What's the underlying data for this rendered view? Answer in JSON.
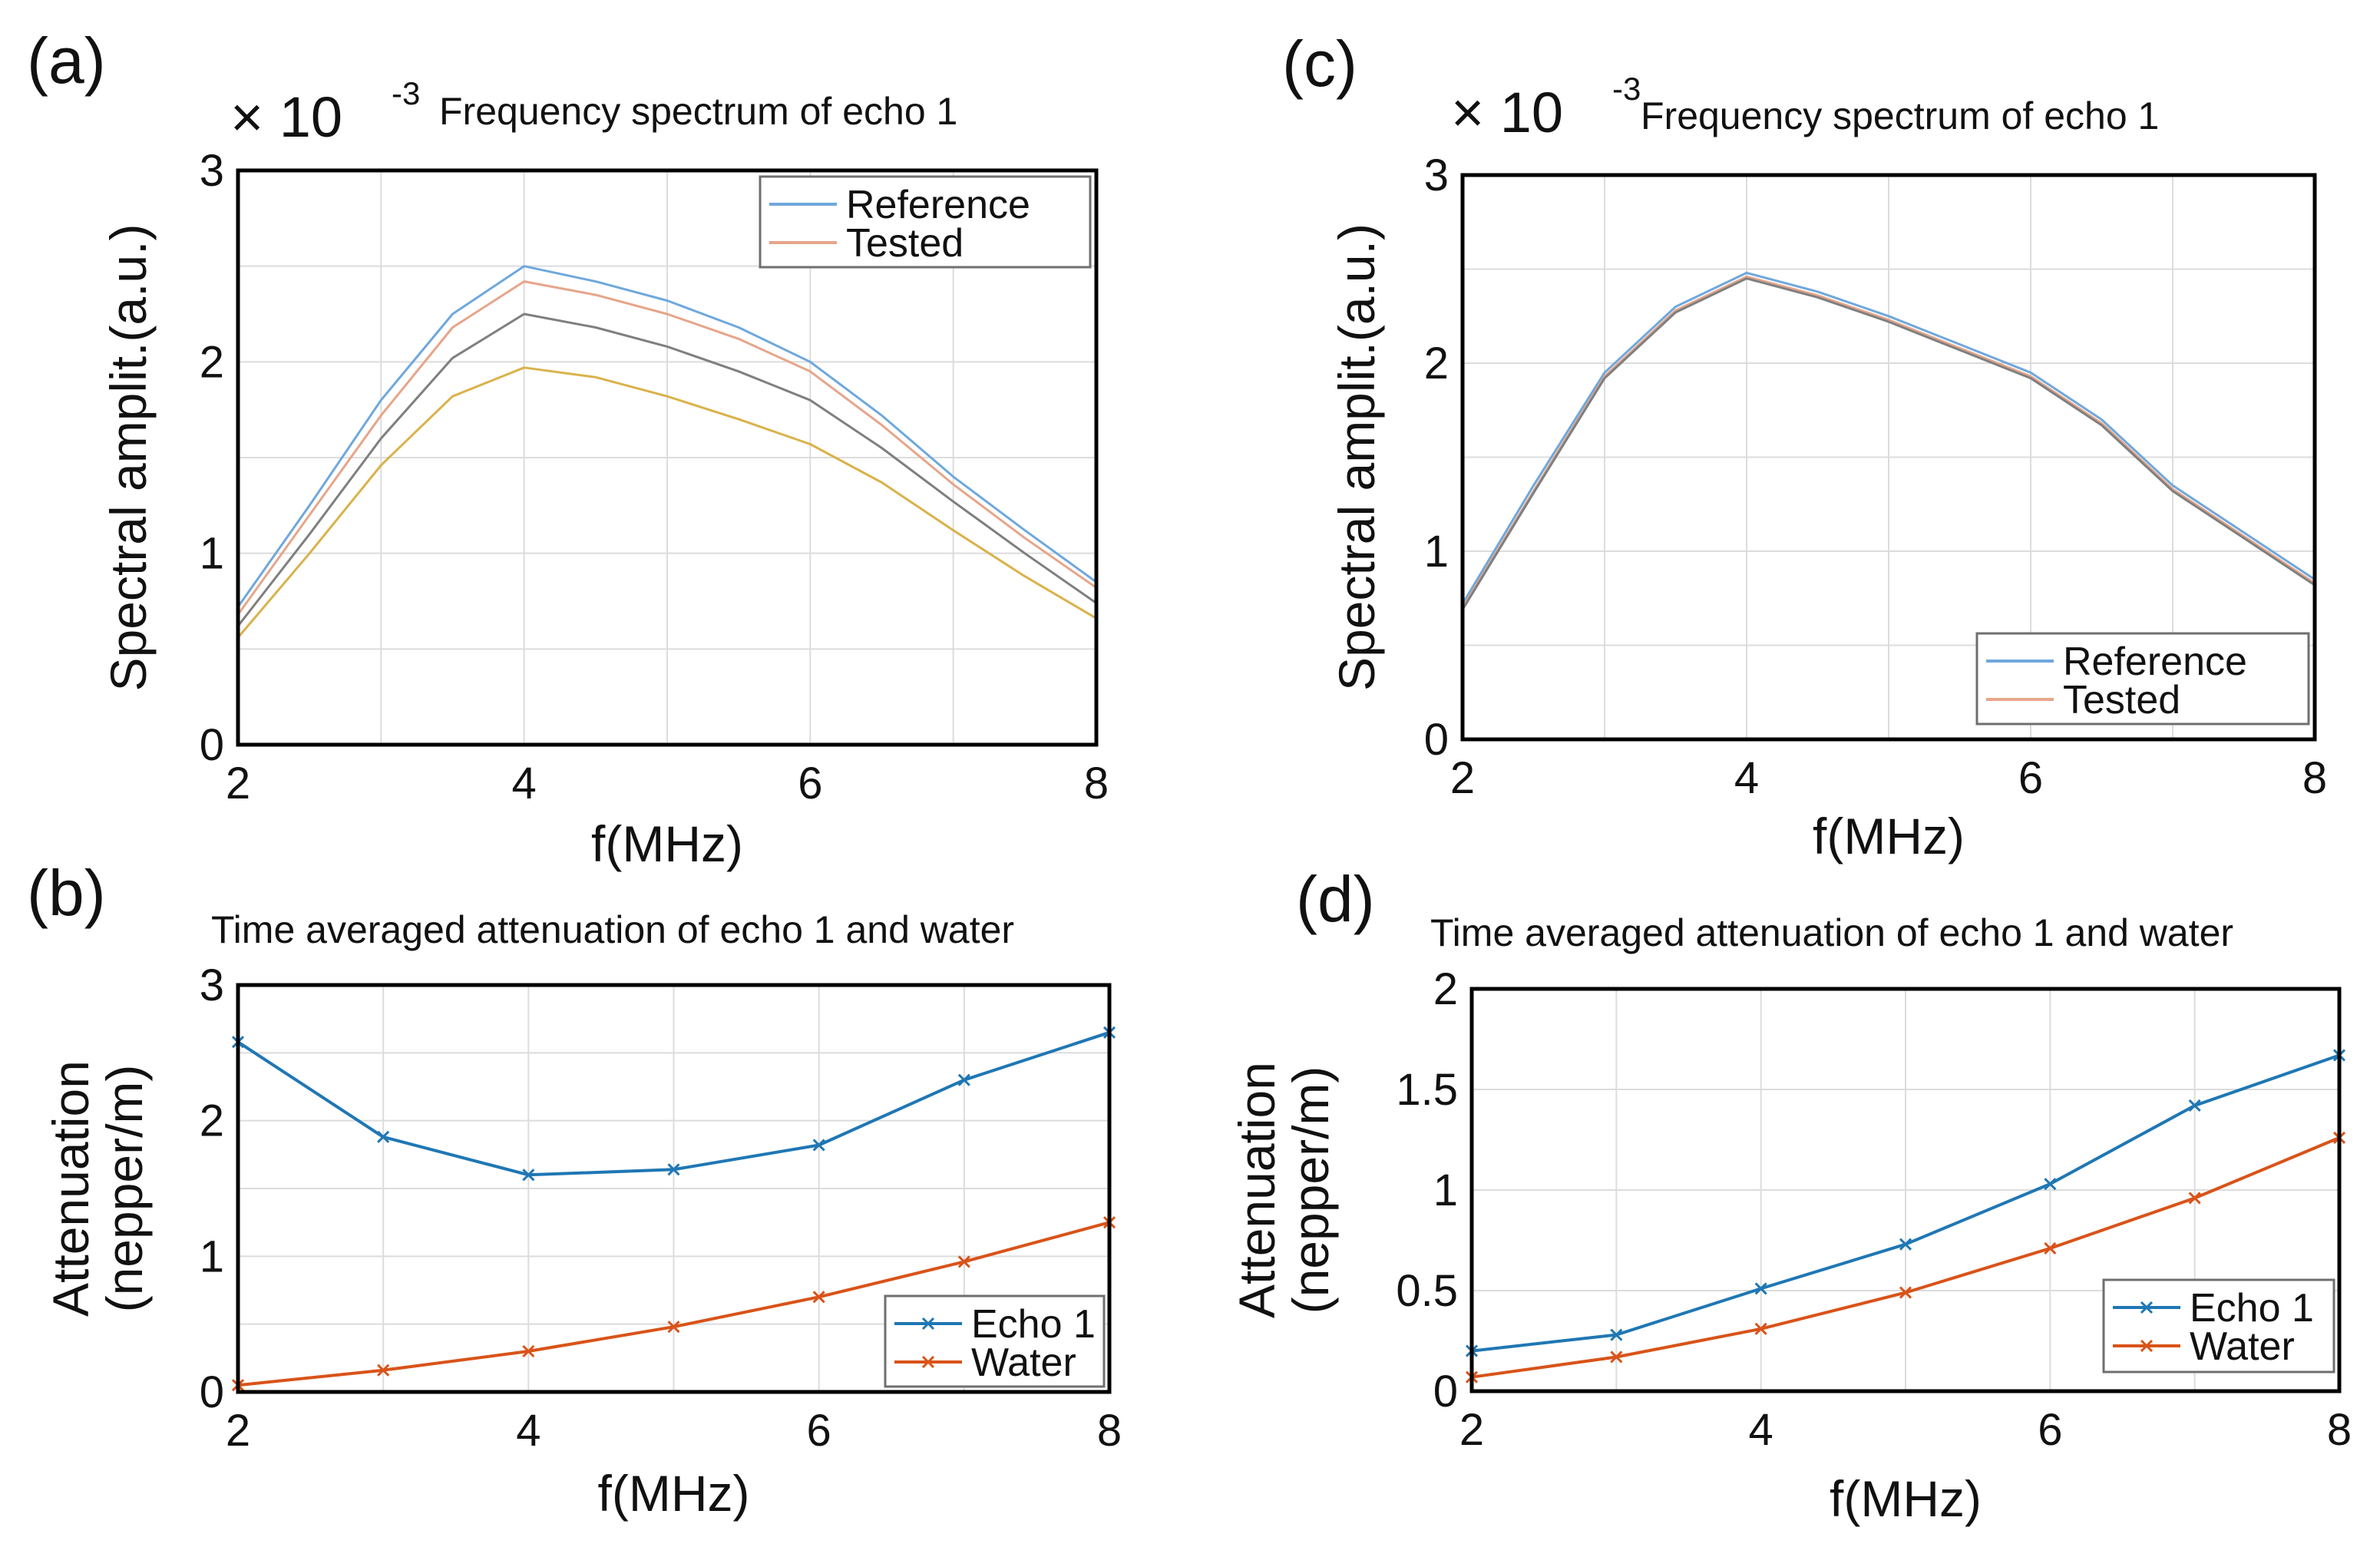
{
  "figure": {
    "panels": [
      "(a)",
      "(b)",
      "(c)",
      "(d)"
    ]
  },
  "chart_data": [
    {
      "id": "a",
      "type": "line",
      "panel_label": "(a)",
      "title": "Frequency spectrum of echo 1",
      "multiplier": "× 10",
      "multiplier_exp": "-3",
      "xlabel": "f(MHz)",
      "ylabel": "Spectral amplit.(a.u.)",
      "xlim": [
        2,
        8
      ],
      "ylim": [
        0,
        3
      ],
      "xticks": [
        "2",
        "4",
        "6",
        "8"
      ],
      "yticks": [
        "0",
        "1",
        "2",
        "3"
      ],
      "legend_position": "top-right",
      "legend": [
        "Reference",
        "Tested"
      ],
      "x": [
        2,
        2.5,
        3,
        3.5,
        4,
        4.5,
        5,
        5.5,
        6,
        6.5,
        7,
        7.5,
        8
      ],
      "series": [
        {
          "name": "Reference",
          "color": "#6fa8dc",
          "values": [
            0.72,
            1.25,
            1.8,
            2.25,
            2.5,
            2.42,
            2.32,
            2.18,
            2.0,
            1.72,
            1.4,
            1.12,
            0.85
          ]
        },
        {
          "name": "Tested",
          "color": "#e6a58a",
          "values": [
            0.68,
            1.2,
            1.72,
            2.18,
            2.42,
            2.35,
            2.25,
            2.12,
            1.95,
            1.67,
            1.36,
            1.08,
            0.82
          ]
        },
        {
          "name": "Tested",
          "color": "#7f7f7f",
          "values": [
            0.62,
            1.1,
            1.6,
            2.02,
            2.25,
            2.18,
            2.08,
            1.95,
            1.8,
            1.55,
            1.27,
            1.0,
            0.74
          ]
        },
        {
          "name": "Tested",
          "color": "#d9b24a",
          "values": [
            0.56,
            1.0,
            1.46,
            1.82,
            1.97,
            1.92,
            1.82,
            1.7,
            1.57,
            1.37,
            1.12,
            0.88,
            0.66
          ]
        }
      ]
    },
    {
      "id": "b",
      "type": "line",
      "panel_label": "(b)",
      "title": "Time averaged attenuation of echo 1 and water",
      "xlabel": "f(MHz)",
      "ylabel": "Attenuation",
      "ylabel2": "(nepper/m)",
      "xlim": [
        2,
        8
      ],
      "ylim": [
        0,
        3
      ],
      "xticks": [
        "2",
        "4",
        "6",
        "8"
      ],
      "yticks": [
        "0",
        "1",
        "2",
        "3"
      ],
      "legend_position": "bottom-right",
      "legend": [
        "Echo 1",
        "Water"
      ],
      "x": [
        2,
        3,
        4,
        5,
        6,
        7,
        8
      ],
      "series": [
        {
          "name": "Echo 1",
          "color": "#1f77b4",
          "values": [
            2.58,
            1.88,
            1.6,
            1.64,
            1.82,
            2.3,
            2.65
          ]
        },
        {
          "name": "Water",
          "color": "#d95319",
          "values": [
            0.05,
            0.16,
            0.3,
            0.48,
            0.7,
            0.96,
            1.25
          ]
        }
      ]
    },
    {
      "id": "c",
      "type": "line",
      "panel_label": "(c)",
      "title": "Frequency spectrum of echo 1",
      "multiplier": "× 10",
      "multiplier_exp": "-3",
      "xlabel": "f(MHz)",
      "ylabel": "Spectral amplit.(a.u.)",
      "xlim": [
        2,
        8
      ],
      "ylim": [
        0,
        3
      ],
      "xticks": [
        "2",
        "4",
        "6",
        "8"
      ],
      "yticks": [
        "0",
        "1",
        "2",
        "3"
      ],
      "legend_position": "bottom-right",
      "legend": [
        "Reference",
        "Tested"
      ],
      "x": [
        2,
        2.5,
        3,
        3.5,
        4,
        4.5,
        5,
        5.5,
        6,
        6.5,
        7,
        7.5,
        8
      ],
      "series": [
        {
          "name": "Reference",
          "color": "#6fa8dc",
          "values": [
            0.72,
            1.35,
            1.95,
            2.3,
            2.48,
            2.38,
            2.25,
            2.1,
            1.95,
            1.7,
            1.35,
            1.1,
            0.85
          ]
        },
        {
          "name": "Tested",
          "color": "#e6a58a",
          "values": [
            0.7,
            1.32,
            1.93,
            2.28,
            2.46,
            2.36,
            2.23,
            2.08,
            1.93,
            1.68,
            1.33,
            1.08,
            0.83
          ]
        },
        {
          "name": "Tested",
          "color": "#7f7f7f",
          "values": [
            0.69,
            1.31,
            1.92,
            2.27,
            2.45,
            2.35,
            2.22,
            2.07,
            1.92,
            1.67,
            1.32,
            1.07,
            0.82
          ]
        }
      ]
    },
    {
      "id": "d",
      "type": "line",
      "panel_label": "(d)",
      "title": "Time averaged attenuation of echo 1 and water",
      "xlabel": "f(MHz)",
      "ylabel": "Attenuation",
      "ylabel2": "(nepper/m)",
      "xlim": [
        2,
        8
      ],
      "ylim": [
        0,
        2
      ],
      "xticks": [
        "2",
        "4",
        "6",
        "8"
      ],
      "yticks": [
        "0",
        "0.5",
        "1",
        "1.5",
        "2"
      ],
      "legend_position": "bottom-right",
      "legend": [
        "Echo 1",
        "Water"
      ],
      "x": [
        2,
        3,
        4,
        5,
        6,
        7,
        8
      ],
      "series": [
        {
          "name": "Echo 1",
          "color": "#1f77b4",
          "values": [
            0.2,
            0.28,
            0.51,
            0.73,
            1.03,
            1.42,
            1.67
          ]
        },
        {
          "name": "Water",
          "color": "#d95319",
          "values": [
            0.07,
            0.17,
            0.31,
            0.49,
            0.71,
            0.96,
            1.26
          ]
        }
      ]
    }
  ]
}
